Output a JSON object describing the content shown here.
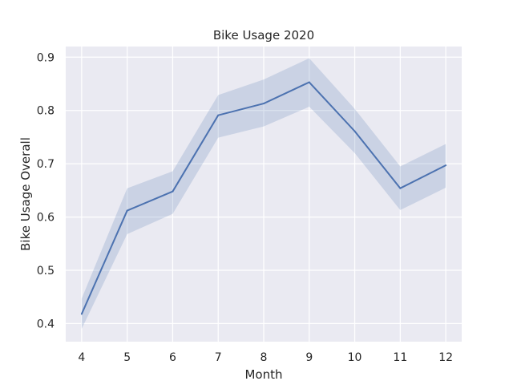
{
  "chart_data": {
    "type": "line",
    "title": "Bike Usage 2020",
    "xlabel": "Month",
    "ylabel": "Bike Usage Overall",
    "x": [
      4,
      5,
      6,
      7,
      8,
      9,
      10,
      11,
      12
    ],
    "x_ticks": [
      "4",
      "5",
      "6",
      "7",
      "8",
      "9",
      "10",
      "11",
      "12"
    ],
    "y_ticks": [
      "0.4",
      "0.5",
      "0.6",
      "0.7",
      "0.8",
      "0.9"
    ],
    "xlim": [
      3.65,
      12.35
    ],
    "ylim": [
      0.366,
      0.92
    ],
    "series": [
      {
        "values": [
          0.418,
          0.612,
          0.648,
          0.791,
          0.813,
          0.853,
          0.761,
          0.654,
          0.697
        ],
        "ci_lower": [
          0.39,
          0.568,
          0.606,
          0.749,
          0.77,
          0.807,
          0.72,
          0.613,
          0.655
        ],
        "ci_upper": [
          0.447,
          0.654,
          0.686,
          0.829,
          0.858,
          0.898,
          0.803,
          0.695,
          0.737
        ]
      }
    ],
    "grid": true,
    "style": {
      "background_color": "#eaeaf2",
      "grid_color": "#ffffff",
      "line_color": "#4c72b0",
      "band_color": "#4c72b0",
      "band_opacity": 0.2
    }
  }
}
